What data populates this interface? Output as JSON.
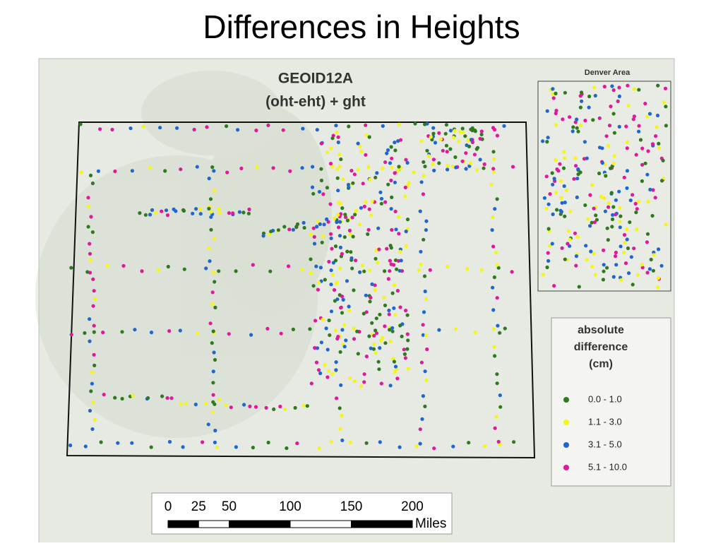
{
  "title": "Differences in Heights",
  "map": {
    "title": [
      "GEOID12A",
      "(oht-eht) + ght"
    ],
    "inset_title": "Denver Area",
    "legend": {
      "title": [
        "absolute",
        "difference",
        "(cm)"
      ],
      "items": [
        {
          "label": "0.0 - 1.0",
          "color": "#2f7a1f"
        },
        {
          "label": "1.1 - 3.0",
          "color": "#f5f51a"
        },
        {
          "label": "3.1 - 5.0",
          "color": "#1f66d1"
        },
        {
          "label": "5.1 - 10.0",
          "color": "#e0189a"
        }
      ]
    },
    "scale_bar": {
      "ticks": [
        0,
        25,
        50,
        100,
        150,
        200
      ],
      "unit": "Miles"
    }
  }
}
